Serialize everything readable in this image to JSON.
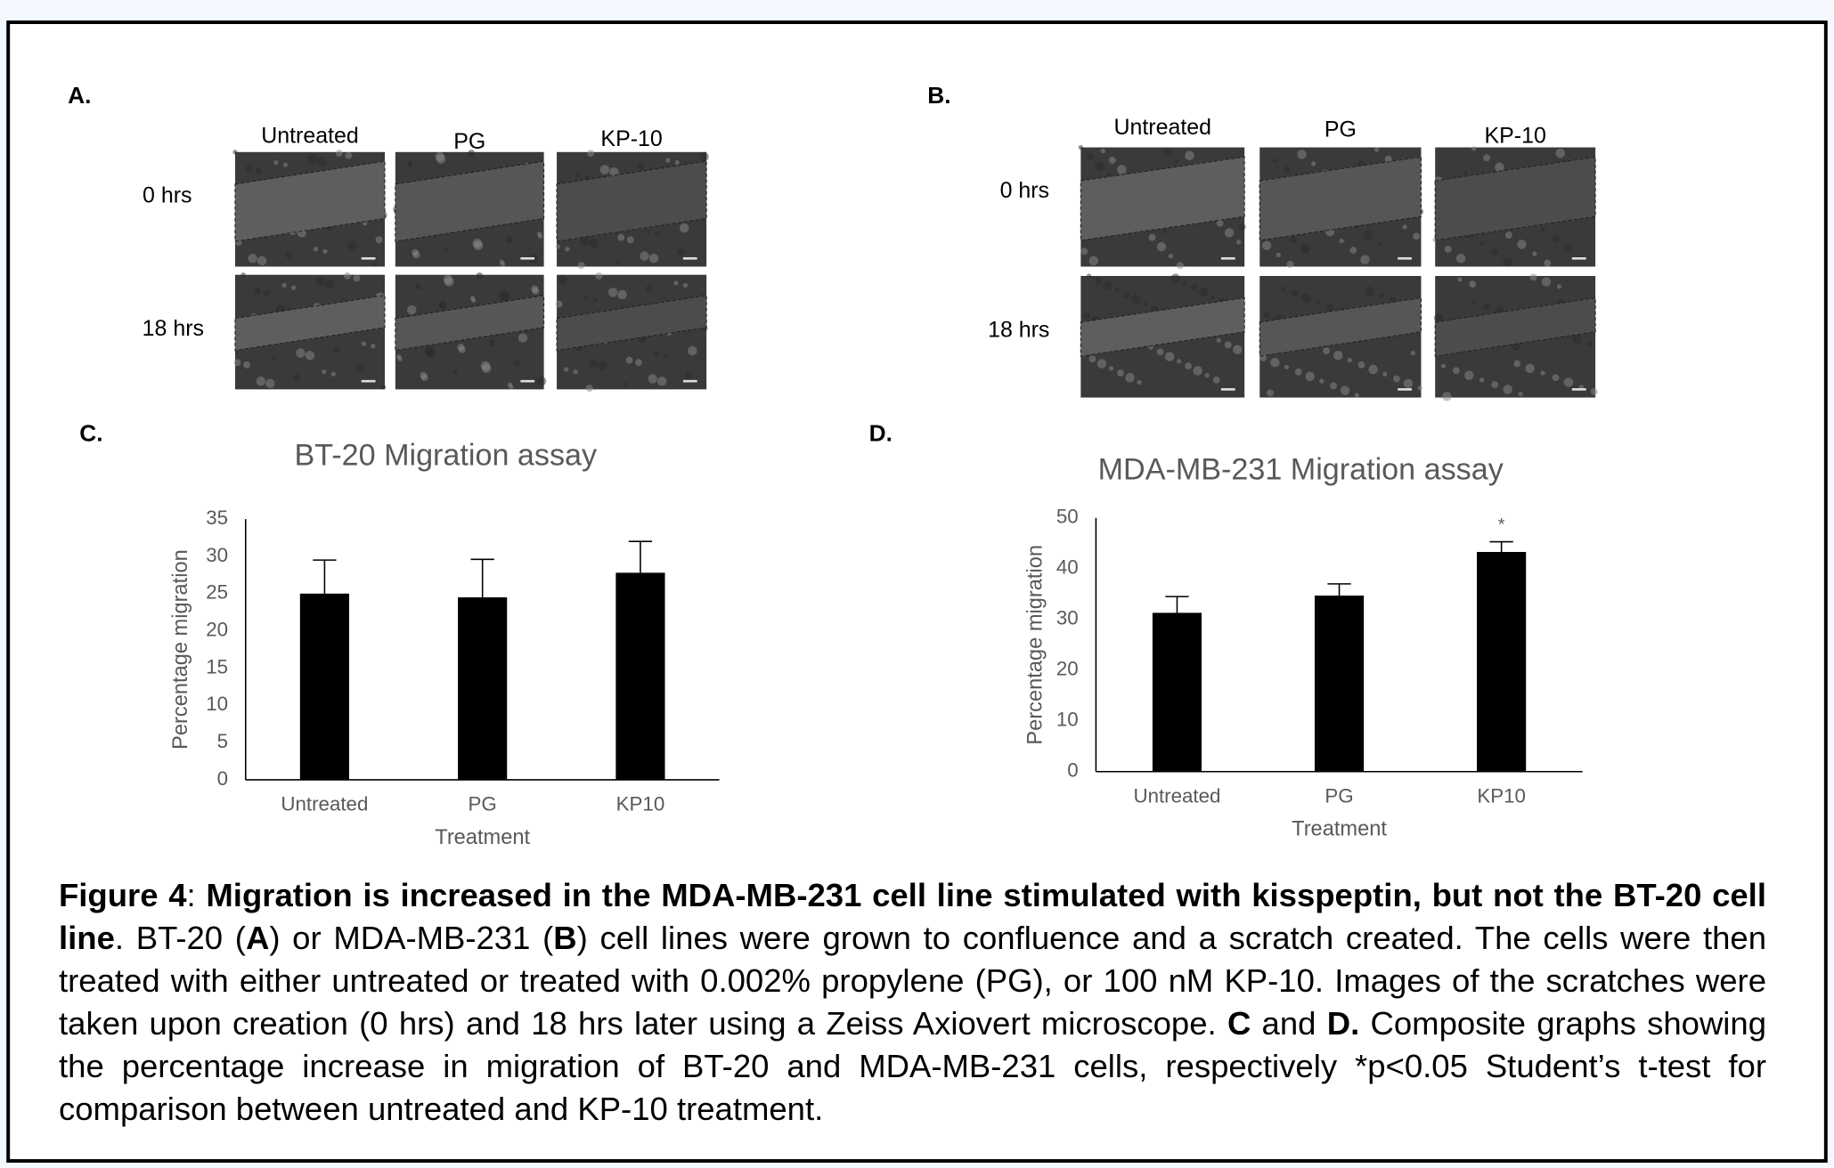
{
  "panels": [
    {
      "label": "A.",
      "columns": [
        "Untreated",
        "PG",
        "KP-10"
      ],
      "rows": [
        "0 hrs",
        "18 hrs"
      ]
    },
    {
      "label": "B.",
      "columns": [
        "Untreated",
        "PG",
        "KP-10"
      ],
      "rows": [
        "0 hrs",
        "18 hrs"
      ]
    }
  ],
  "chart_data": [
    {
      "type": "bar",
      "panel_label": "C.",
      "title": "BT-20 Migration assay",
      "x_label": "Treatment",
      "y_label": "Percentage migration",
      "categories": [
        "Untreated",
        "PG",
        "KP10"
      ],
      "values": [
        25,
        24.5,
        27.8
      ],
      "errors": [
        4.5,
        5.1,
        4.2
      ],
      "color": "#000000",
      "ylim": [
        0,
        35
      ],
      "yticks": [
        0,
        5,
        10,
        15,
        20,
        25,
        30,
        35
      ],
      "grid": false
    },
    {
      "type": "bar",
      "panel_label": "D.",
      "title": "MDA-MB-231 Migration assay",
      "x_label": "Treatment",
      "y_label": "Percentage migration",
      "categories": [
        "Untreated",
        "PG",
        "KP10"
      ],
      "values": [
        31.3,
        34.7,
        43.3
      ],
      "errors": [
        3.2,
        2.3,
        2
      ],
      "color": "#000000",
      "ylim": [
        0,
        50
      ],
      "yticks": [
        0,
        10,
        20,
        30,
        40,
        50
      ],
      "grid": false,
      "annotation": {
        "text": "*",
        "category": "KP10"
      }
    }
  ],
  "caption": [
    {
      "text": "Figure 4",
      "bold": true
    },
    {
      "text": ": ",
      "bold": false
    },
    {
      "text": "Migration is increased in the MDA-MB-231 cell line stimulated with kisspeptin, but not the BT-20 cell line",
      "bold": true
    },
    {
      "text": ". BT-20 (",
      "bold": false
    },
    {
      "text": "A",
      "bold": true
    },
    {
      "text": ") or MDA-MB-231 (",
      "bold": false
    },
    {
      "text": "B",
      "bold": true
    },
    {
      "text": ") cell lines were grown to confluence and a scratch created. The cells were then treated with either untreated or treated with 0.002% propylene (PG), or 100 nM KP-10. Images of the scratches were  taken upon creation (0 hrs) and 18 hrs later using a Zeiss Axiovert microscope. ",
      "bold": false
    },
    {
      "text": "C",
      "bold": true
    },
    {
      "text": " and ",
      "bold": false
    },
    {
      "text": "D.",
      "bold": true
    },
    {
      "text": " Composite graphs showing the percentage increase in migration of BT-20 and MDA-MB-231 cells, respectively *p<0.05 Student’s t-test for comparison between untreated and KP-10 treatment.",
      "bold": false
    }
  ]
}
